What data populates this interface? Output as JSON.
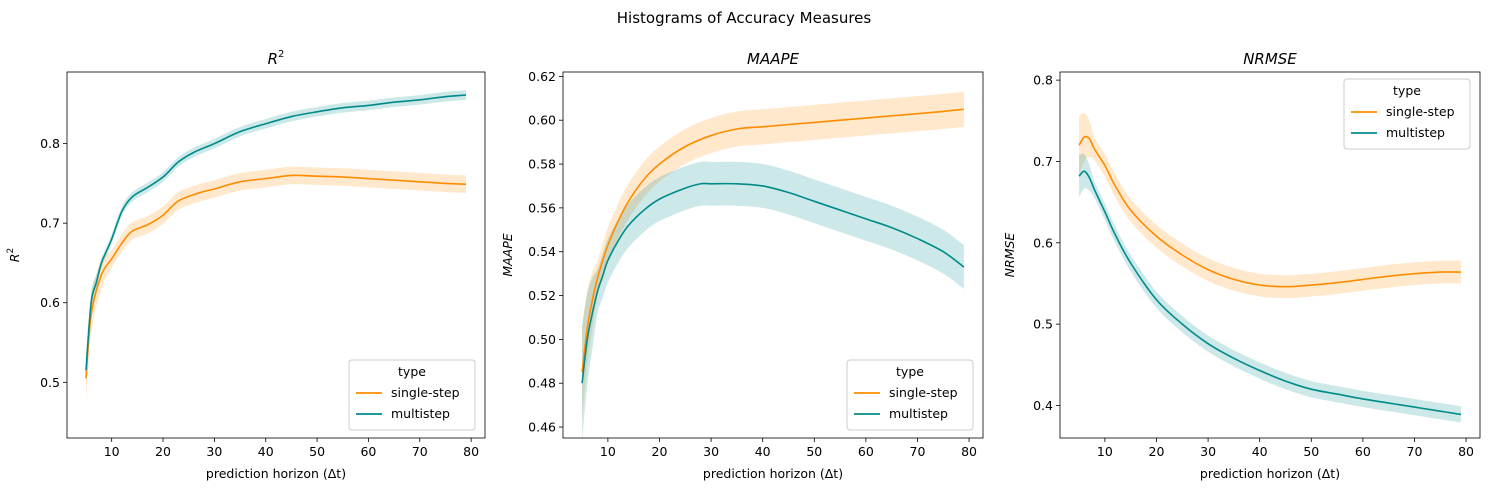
{
  "figure": {
    "title": "Histograms of Accuracy Measures"
  },
  "colors": {
    "single_step": "#ff8c00",
    "multistep": "#008b8b",
    "axis": "#000000",
    "legend_border": "#cccccc"
  },
  "chart_data": [
    {
      "type": "line",
      "title": "R",
      "title_superscript": "2",
      "xlabel": "prediction horizon (Δt)",
      "ylabel": "R",
      "ylabel_superscript": "2",
      "xlim": [
        1.3,
        82.7
      ],
      "ylim": [
        0.43,
        0.89
      ],
      "xticks": [
        10,
        20,
        30,
        40,
        50,
        60,
        70,
        80
      ],
      "yticks": [
        0.5,
        0.6,
        0.7,
        0.8
      ],
      "ytick_labels": [
        "0.5",
        "0.6",
        "0.7",
        "0.8"
      ],
      "grid": false,
      "legend": {
        "title": "type",
        "position": "lower right",
        "entries": [
          "single-step",
          "multistep"
        ]
      },
      "series": [
        {
          "name": "single-step",
          "x": [
            5,
            6,
            8,
            10,
            12,
            14,
            17,
            20,
            23,
            27,
            30,
            35,
            40,
            45,
            50,
            55,
            60,
            65,
            70,
            75,
            79
          ],
          "y": [
            0.505,
            0.585,
            0.635,
            0.655,
            0.675,
            0.69,
            0.698,
            0.71,
            0.728,
            0.738,
            0.743,
            0.752,
            0.756,
            0.76,
            0.759,
            0.758,
            0.756,
            0.754,
            0.752,
            0.75,
            0.749
          ],
          "band": 0.011
        },
        {
          "name": "multistep",
          "x": [
            5,
            6,
            7,
            8,
            9,
            10,
            12,
            14,
            17,
            20,
            23,
            26,
            30,
            35,
            40,
            45,
            50,
            55,
            60,
            65,
            70,
            75,
            79
          ],
          "y": [
            0.515,
            0.6,
            0.625,
            0.65,
            0.665,
            0.68,
            0.715,
            0.733,
            0.745,
            0.758,
            0.777,
            0.789,
            0.8,
            0.815,
            0.825,
            0.834,
            0.84,
            0.845,
            0.848,
            0.852,
            0.855,
            0.859,
            0.861
          ],
          "band": 0.006
        }
      ]
    },
    {
      "type": "line",
      "title": "MAAPE",
      "xlabel": "prediction horizon (Δt)",
      "ylabel": "MAAPE",
      "xlim": [
        1.3,
        82.7
      ],
      "ylim": [
        0.455,
        0.622
      ],
      "xticks": [
        10,
        20,
        30,
        40,
        50,
        60,
        70,
        80
      ],
      "yticks": [
        0.46,
        0.48,
        0.5,
        0.52,
        0.54,
        0.56,
        0.58,
        0.6,
        0.62
      ],
      "ytick_labels": [
        "0.46",
        "0.48",
        "0.50",
        "0.52",
        "0.54",
        "0.56",
        "0.58",
        "0.60",
        "0.62"
      ],
      "grid": false,
      "legend": {
        "title": "type",
        "position": "lower right",
        "entries": [
          "single-step",
          "multistep"
        ]
      },
      "series": [
        {
          "name": "single-step",
          "x": [
            5,
            6,
            7,
            8,
            9,
            10,
            12,
            14,
            17,
            20,
            25,
            30,
            35,
            40,
            45,
            50,
            55,
            60,
            65,
            70,
            75,
            79
          ],
          "y": [
            0.485,
            0.505,
            0.518,
            0.528,
            0.536,
            0.543,
            0.554,
            0.563,
            0.573,
            0.58,
            0.588,
            0.593,
            0.596,
            0.597,
            0.598,
            0.599,
            0.6,
            0.601,
            0.602,
            0.603,
            0.604,
            0.605
          ],
          "band": 0.008
        },
        {
          "name": "multistep",
          "x": [
            5,
            6,
            7,
            8,
            9,
            10,
            12,
            14,
            17,
            20,
            25,
            28,
            30,
            35,
            40,
            45,
            50,
            55,
            60,
            65,
            70,
            75,
            79
          ],
          "y": [
            0.48,
            0.5,
            0.512,
            0.522,
            0.529,
            0.536,
            0.545,
            0.552,
            0.559,
            0.564,
            0.569,
            0.571,
            0.571,
            0.571,
            0.57,
            0.567,
            0.563,
            0.559,
            0.555,
            0.551,
            0.546,
            0.54,
            0.533
          ],
          "band": 0.01
        }
      ]
    },
    {
      "type": "line",
      "title": "NRMSE",
      "xlabel": "prediction horizon (Δt)",
      "ylabel": "NRMSE",
      "xlim": [
        1.3,
        82.7
      ],
      "ylim": [
        0.36,
        0.81
      ],
      "xticks": [
        10,
        20,
        30,
        40,
        50,
        60,
        70,
        80
      ],
      "yticks": [
        0.4,
        0.5,
        0.6,
        0.7,
        0.8
      ],
      "ytick_labels": [
        "0.4",
        "0.5",
        "0.6",
        "0.7",
        "0.8"
      ],
      "grid": false,
      "legend": {
        "title": "type",
        "position": "upper right",
        "entries": [
          "single-step",
          "multistep"
        ]
      },
      "series": [
        {
          "name": "single-step",
          "x": [
            5,
            6,
            7,
            8,
            10,
            12,
            15,
            20,
            25,
            30,
            35,
            40,
            45,
            50,
            55,
            60,
            65,
            70,
            75,
            79
          ],
          "y": [
            0.72,
            0.73,
            0.728,
            0.715,
            0.695,
            0.67,
            0.64,
            0.608,
            0.585,
            0.567,
            0.555,
            0.548,
            0.546,
            0.548,
            0.551,
            0.555,
            0.559,
            0.562,
            0.564,
            0.564
          ],
          "band": 0.014
        },
        {
          "name": "multistep",
          "x": [
            5,
            6,
            7,
            8,
            10,
            12,
            15,
            20,
            25,
            30,
            35,
            40,
            45,
            50,
            55,
            60,
            65,
            70,
            75,
            79
          ],
          "y": [
            0.682,
            0.688,
            0.68,
            0.665,
            0.638,
            0.61,
            0.575,
            0.53,
            0.5,
            0.476,
            0.458,
            0.443,
            0.43,
            0.42,
            0.414,
            0.408,
            0.403,
            0.398,
            0.393,
            0.389
          ],
          "band": 0.01
        }
      ]
    }
  ]
}
